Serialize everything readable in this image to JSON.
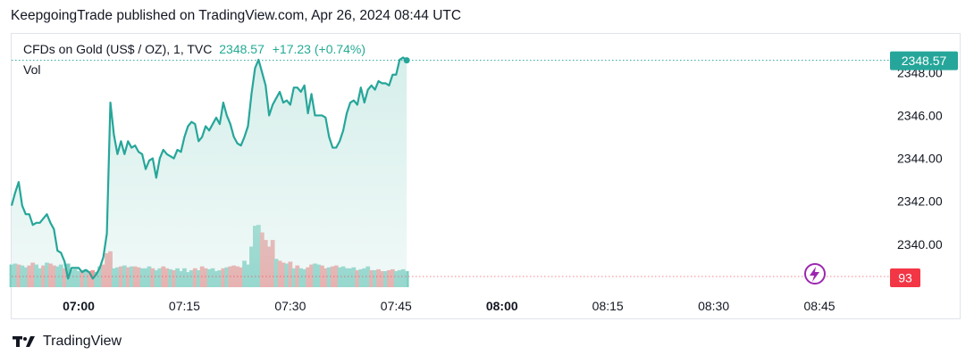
{
  "header": {
    "attribution": "KeepgoingTrade published on TradingView.com, Apr 26, 2024 08:44 UTC"
  },
  "legend": {
    "symbol": "CFDs on Gold (US$ / OZ), 1, TVC",
    "last_price": "2348.57",
    "change": "+17.23 (+0.74%)",
    "volume_label": "Vol"
  },
  "badges": {
    "price": "2348.57",
    "volume": "93"
  },
  "footer": {
    "brand": "TradingView"
  },
  "colors": {
    "line": "#26a69a",
    "area_fill": "#cfece7",
    "vol_up": "#7fcfc3",
    "vol_down": "#f09a9a",
    "price_badge": "#26a69a",
    "volume_badge": "#f23645",
    "lightning_icon": "#9c27b0"
  },
  "chart_data": {
    "type": "area",
    "title": "CFDs on Gold (US$ / OZ), 1, TVC",
    "y_axis": {
      "ticks": [
        2340,
        2342,
        2344,
        2346,
        2348
      ],
      "tick_labels": [
        "2340.00",
        "2342.00",
        "2344.00",
        "2346.00",
        "2348.00"
      ],
      "ylim": [
        2338,
        2349.8
      ],
      "position": "right"
    },
    "x_axis": {
      "ticks": [
        {
          "label": "07:00",
          "minute": 420,
          "bold": true
        },
        {
          "label": "07:15",
          "minute": 435,
          "bold": false
        },
        {
          "label": "07:30",
          "minute": 450,
          "bold": false
        },
        {
          "label": "07:45",
          "minute": 465,
          "bold": false
        },
        {
          "label": "08:00",
          "minute": 480,
          "bold": true
        },
        {
          "label": "08:15",
          "minute": 495,
          "bold": false
        },
        {
          "label": "08:30",
          "minute": 510,
          "bold": false
        },
        {
          "label": "08:45",
          "minute": 525,
          "bold": false
        }
      ],
      "xlim": [
        410.5,
        535
      ]
    },
    "series": [
      {
        "minute_start": 410.5,
        "minute_step": 0.5,
        "values": [
          2341.8,
          2342.4,
          2342.9,
          2341.8,
          2341.4,
          2341.4,
          2340.9,
          2341.0,
          2341.0,
          2341.2,
          2341.4,
          2341.0,
          2340.7,
          2339.7,
          2339.6,
          2339.2,
          2338.4,
          2338.9,
          2338.9,
          2338.9,
          2338.7,
          2338.8,
          2338.7,
          2338.4,
          2338.6,
          2338.9,
          2339.4,
          2340.5,
          2346.6,
          2345.1,
          2344.2,
          2344.8,
          2344.2,
          2344.8,
          2344.5,
          2344.6,
          2344.3,
          2344.2,
          2343.5,
          2343.9,
          2344.0,
          2343.1,
          2344.0,
          2344.4,
          2344.2,
          2344.1,
          2344.0,
          2344.4,
          2344.3,
          2345.0,
          2345.5,
          2345.7,
          2345.6,
          2344.8,
          2345.0,
          2345.5,
          2345.3,
          2345.6,
          2345.9,
          2345.6,
          2346.6,
          2346.0,
          2345.6,
          2345.0,
          2344.7,
          2344.6,
          2345.0,
          2345.5,
          2347.0,
          2348.2,
          2348.6,
          2348.0,
          2347.4,
          2346.0,
          2346.5,
          2346.8,
          2347.1,
          2346.6,
          2346.7,
          2346.5,
          2347.3,
          2347.3,
          2347.1,
          2347.4,
          2346.1,
          2347.0,
          2346.0,
          2346.0,
          2346.0,
          2345.9,
          2345.0,
          2344.5,
          2344.5,
          2344.8,
          2345.3,
          2346.1,
          2346.6,
          2346.7,
          2346.5,
          2347.3,
          2346.6,
          2347.2,
          2347.4,
          2347.2,
          2347.6,
          2347.5,
          2347.5,
          2347.4,
          2347.9,
          2347.9,
          2348.6,
          2348.7,
          2348.57
        ]
      },
      {
        "name": "Vol",
        "type": "bar",
        "max_scale": 1000,
        "values": [
          240,
          250,
          240,
          230,
          210,
          230,
          260,
          240,
          200,
          230,
          260,
          250,
          230,
          220,
          240,
          200,
          250,
          180,
          190,
          170,
          180,
          190,
          170,
          180,
          160,
          220,
          240,
          360,
          380,
          200,
          210,
          220,
          230,
          210,
          220,
          220,
          210,
          200,
          200,
          220,
          200,
          180,
          200,
          220,
          200,
          190,
          180,
          200,
          170,
          200,
          160,
          180,
          200,
          180,
          220,
          200,
          190,
          200,
          170,
          180,
          200,
          210,
          220,
          230,
          220,
          210,
          280,
          240,
          430,
          650,
          660,
          580,
          500,
          430,
          500,
          300,
          280,
          260,
          250,
          270,
          200,
          230,
          200,
          190,
          210,
          240,
          250,
          240,
          230,
          200,
          210,
          220,
          230,
          210,
          220,
          200,
          200,
          210,
          180,
          190,
          200,
          220,
          180,
          180,
          190,
          170,
          170,
          180,
          190,
          170,
          180,
          190,
          170
        ],
        "up": [
          1,
          1,
          0,
          1,
          1,
          0,
          0,
          1,
          1,
          0,
          1,
          0,
          0,
          1,
          1,
          0,
          1,
          1,
          1,
          1,
          0,
          1,
          0,
          0,
          1,
          1,
          0,
          0,
          0,
          1,
          1,
          0,
          1,
          0,
          1,
          0,
          0,
          1,
          1,
          1,
          0,
          1,
          1,
          0,
          0,
          1,
          0,
          1,
          1,
          1,
          1,
          1,
          0,
          1,
          0,
          0,
          1,
          1,
          1,
          1,
          0,
          1,
          0,
          0,
          0,
          0,
          1,
          1,
          1,
          1,
          1,
          0,
          0,
          0,
          0,
          1,
          0,
          0,
          1,
          0,
          1,
          0,
          1,
          1,
          0,
          0,
          1,
          1,
          0,
          0,
          1,
          0,
          0,
          1,
          1,
          1,
          1,
          1,
          0,
          1,
          1,
          1,
          0,
          1,
          0,
          0,
          1,
          0,
          0,
          1,
          1,
          1,
          1
        ]
      }
    ]
  }
}
